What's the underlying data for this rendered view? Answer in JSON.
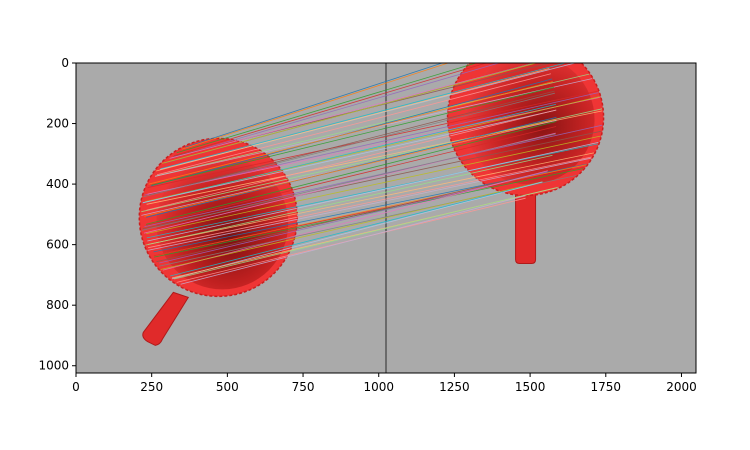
{
  "figure": {
    "x_axis": {
      "range": [
        0,
        2048
      ],
      "ticks": [
        0,
        250,
        500,
        750,
        1000,
        1250,
        1500,
        1750,
        2000
      ],
      "tick_labels": [
        "0",
        "250",
        "500",
        "750",
        "1000",
        "1250",
        "1500",
        "1750",
        "2000"
      ]
    },
    "y_axis": {
      "range": [
        1024,
        0
      ],
      "ticks": [
        0,
        200,
        400,
        600,
        800,
        1000
      ],
      "tick_labels": [
        "0",
        "200",
        "400",
        "600",
        "800",
        "1000"
      ]
    },
    "background_color": "#aaaaaa",
    "divider_x": 1024,
    "divider_color": "#555555",
    "image_left": {
      "object": "red mug seen from above",
      "mug_color": "#ef3535",
      "center": [
        470,
        510
      ],
      "handle_direction": "lower-left"
    },
    "image_right": {
      "object": "red mug seen from above",
      "mug_color": "#ef3535",
      "center": [
        1485,
        180
      ],
      "handle_direction": "down"
    },
    "match_lines": {
      "count": 60,
      "colors": [
        "#1f77b4",
        "#ff7f0e",
        "#2ca02c",
        "#d62728",
        "#9467bd",
        "#8c564b",
        "#e377c2",
        "#7f7f7f",
        "#bcbd22",
        "#17becf",
        "#aec7e8",
        "#ffbb78",
        "#98df8a",
        "#ff9896",
        "#c5b0d5"
      ]
    }
  }
}
